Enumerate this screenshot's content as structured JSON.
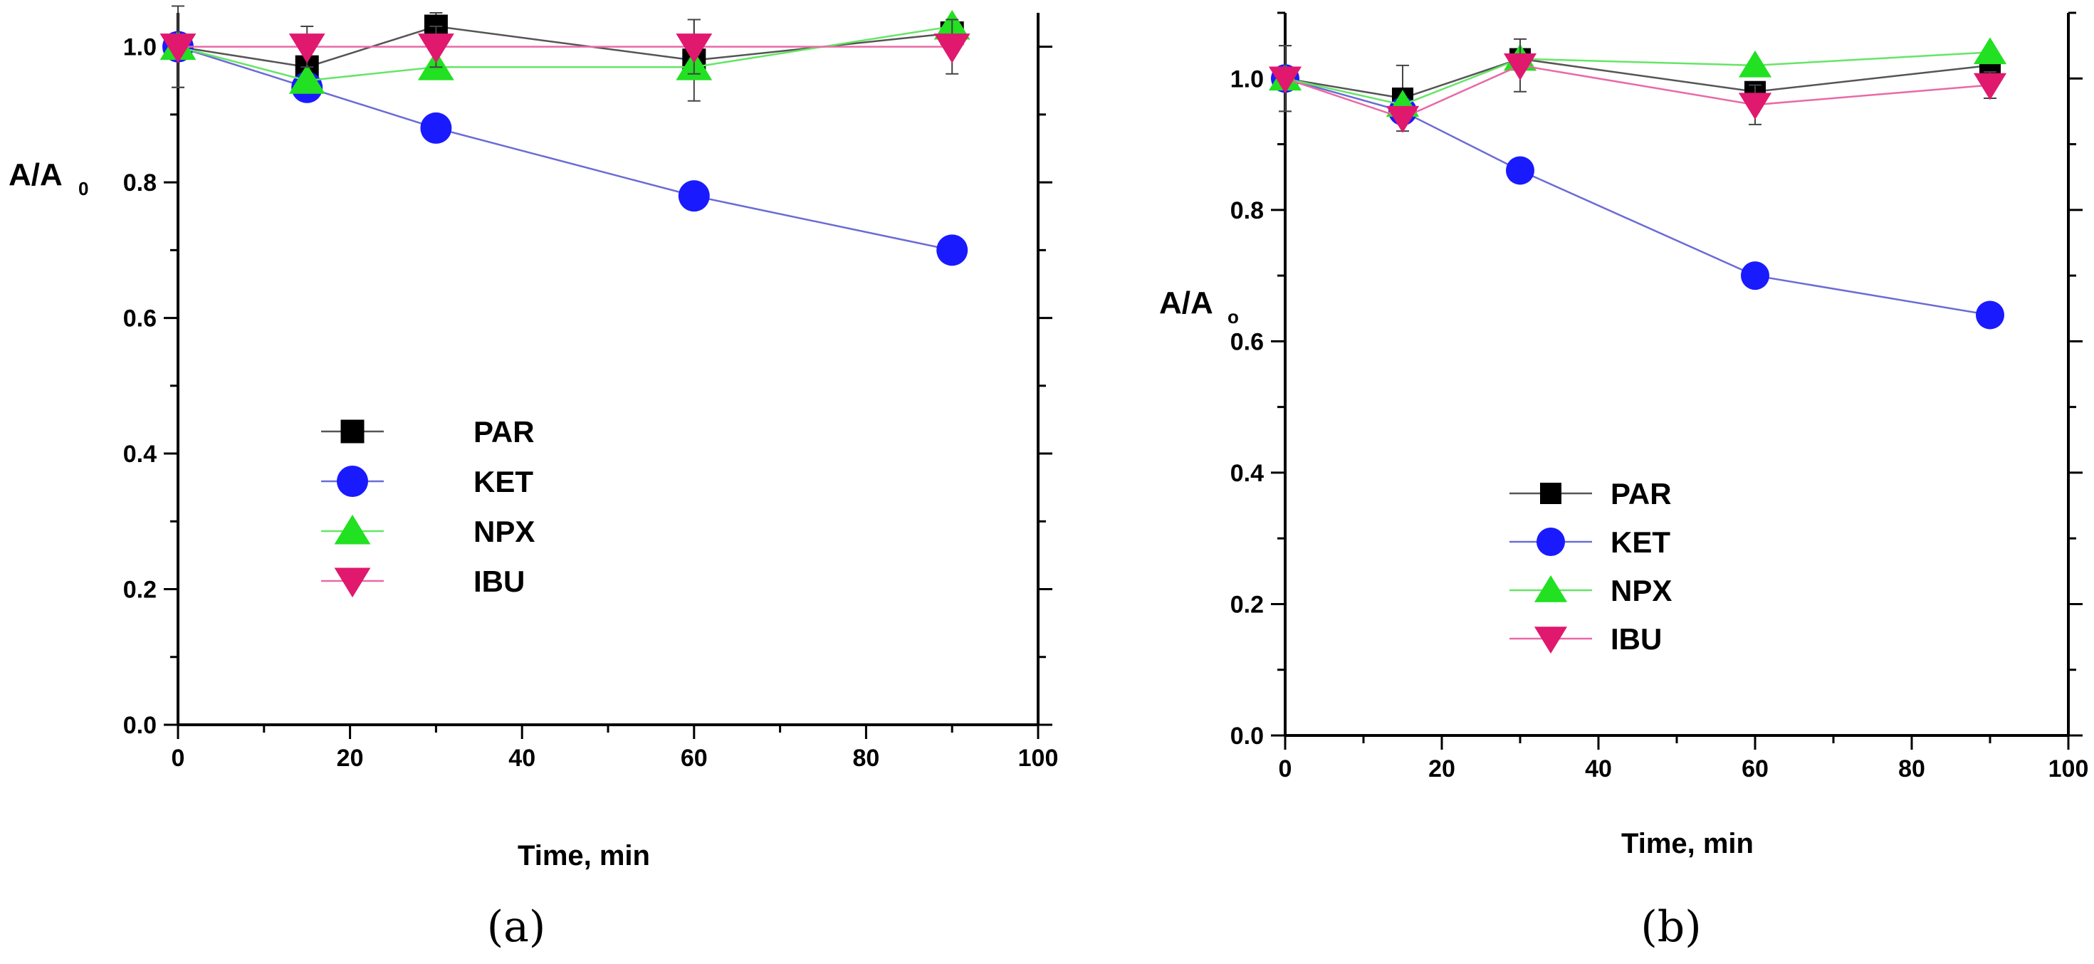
{
  "chart_data": [
    {
      "type": "line",
      "panel_label": "(a)",
      "ylabel": "A/A",
      "ylabel_subscript": "0",
      "xlabel": "Time, min",
      "xlim": [
        0,
        100
      ],
      "ylim": [
        0.0,
        1.05
      ],
      "xticks": [
        "0",
        "20",
        "40",
        "60",
        "80",
        "100"
      ],
      "yticks": [
        "0.0",
        "0.2",
        "0.4",
        "0.6",
        "0.8",
        "1.0"
      ],
      "legend_position": "center-left",
      "x": [
        0,
        15,
        30,
        60,
        90
      ],
      "series": [
        {
          "name": "PAR",
          "values": [
            1.0,
            0.97,
            1.03,
            0.98,
            1.02
          ],
          "errors": [
            0.06,
            0.0,
            0.02,
            0.06,
            0.0
          ]
        },
        {
          "name": "KET",
          "values": [
            1.0,
            0.94,
            0.88,
            0.78,
            0.7
          ],
          "errors": [
            0.0,
            0.0,
            0.0,
            0.0,
            0.0
          ]
        },
        {
          "name": "NPX",
          "values": [
            1.0,
            0.95,
            0.97,
            0.97,
            1.03
          ],
          "errors": [
            0.0,
            0.0,
            0.0,
            0.0,
            0.0
          ]
        },
        {
          "name": "IBU",
          "values": [
            1.0,
            1.0,
            1.0,
            1.0,
            1.0
          ],
          "errors": [
            0.06,
            0.03,
            0.03,
            0.04,
            0.04
          ]
        }
      ]
    },
    {
      "type": "line",
      "panel_label": "(b)",
      "ylabel": "A/A",
      "ylabel_subscript": "o",
      "xlabel": "Time, min",
      "xlim": [
        0,
        100
      ],
      "ylim": [
        0.0,
        1.1
      ],
      "xticks": [
        "0",
        "20",
        "40",
        "60",
        "80",
        "100"
      ],
      "yticks": [
        "0.0",
        "0.2",
        "0.4",
        "0.6",
        "0.8",
        "1.0"
      ],
      "legend_position": "center-left",
      "x": [
        0,
        15,
        30,
        60,
        90
      ],
      "series": [
        {
          "name": "PAR",
          "values": [
            1.0,
            0.97,
            1.03,
            0.98,
            1.02
          ],
          "errors": [
            0.05,
            0.05,
            0.0,
            0.0,
            0.0
          ]
        },
        {
          "name": "KET",
          "values": [
            1.0,
            0.95,
            0.86,
            0.7,
            0.64
          ],
          "errors": [
            0.0,
            0.0,
            0.0,
            0.0,
            0.0
          ]
        },
        {
          "name": "NPX",
          "values": [
            1.0,
            0.96,
            1.03,
            1.02,
            1.04
          ],
          "errors": [
            0.0,
            0.0,
            0.0,
            0.0,
            0.0
          ]
        },
        {
          "name": "IBU",
          "values": [
            1.0,
            0.94,
            1.02,
            0.96,
            0.99
          ],
          "errors": [
            0.05,
            0.0,
            0.04,
            0.03,
            0.02
          ]
        }
      ]
    }
  ],
  "colors": {
    "PAR": {
      "line": "#555555",
      "marker": "#000000"
    },
    "KET": {
      "line": "#6b6bd6",
      "marker": "#1a1aff"
    },
    "NPX": {
      "line": "#66e566",
      "marker": "#22e022"
    },
    "IBU": {
      "line": "#e86aa5",
      "marker": "#e0186e"
    }
  }
}
